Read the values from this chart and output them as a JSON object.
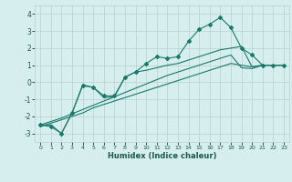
{
  "x": [
    0,
    1,
    2,
    3,
    4,
    5,
    6,
    7,
    8,
    9,
    10,
    11,
    12,
    13,
    14,
    15,
    16,
    17,
    18,
    19,
    20,
    21,
    22,
    23
  ],
  "y_main": [
    -2.5,
    -2.6,
    -3.0,
    -1.8,
    -0.2,
    -0.3,
    -0.8,
    -0.8,
    0.3,
    0.6,
    1.1,
    1.5,
    1.4,
    1.5,
    2.4,
    3.1,
    3.4,
    3.8,
    3.2,
    2.0,
    1.6,
    1.0,
    1.0,
    1.0
  ],
  "y_line1": [
    -2.5,
    -2.5,
    -3.0,
    -1.8,
    -0.15,
    -0.3,
    -0.9,
    -0.85,
    0.3,
    0.6,
    0.7,
    0.85,
    1.0,
    1.1,
    1.3,
    1.5,
    1.7,
    1.9,
    2.0,
    2.1,
    0.9,
    1.0,
    1.0,
    1.0
  ],
  "y_reg1": [
    -2.6,
    -2.4,
    -2.2,
    -2.0,
    -1.8,
    -1.5,
    -1.3,
    -1.1,
    -0.9,
    -0.7,
    -0.5,
    -0.3,
    -0.1,
    0.1,
    0.3,
    0.5,
    0.7,
    0.9,
    1.1,
    1.0,
    0.9,
    1.0,
    1.0,
    1.0
  ],
  "y_reg2": [
    -2.5,
    -2.3,
    -2.1,
    -1.85,
    -1.6,
    -1.35,
    -1.1,
    -0.85,
    -0.6,
    -0.35,
    -0.1,
    0.15,
    0.4,
    0.6,
    0.8,
    1.0,
    1.2,
    1.4,
    1.6,
    0.85,
    0.8,
    1.0,
    1.0,
    1.0
  ],
  "bg_color": "#d6eeee",
  "line_color": "#1a7a6a",
  "grid_color": "#b8d0d0",
  "xlabel": "Humidex (Indice chaleur)",
  "xlim": [
    -0.5,
    23.5
  ],
  "ylim": [
    -3.5,
    4.5
  ],
  "yticks": [
    -3,
    -2,
    -1,
    0,
    1,
    2,
    3,
    4
  ],
  "xticks": [
    0,
    1,
    2,
    3,
    4,
    5,
    6,
    7,
    8,
    9,
    10,
    11,
    12,
    13,
    14,
    15,
    16,
    17,
    18,
    19,
    20,
    21,
    22,
    23
  ],
  "tick_color": "#1a5a4a",
  "xlabel_color": "#1a5a4a"
}
